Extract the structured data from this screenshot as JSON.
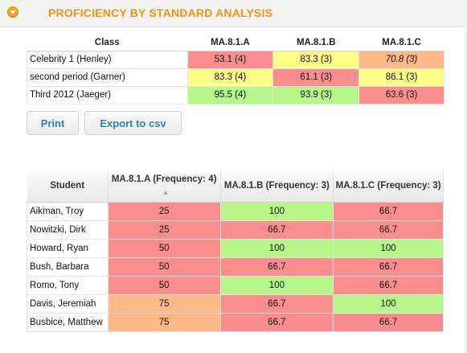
{
  "header": {
    "title": "PROFICIENCY BY STANDARD ANALYSIS"
  },
  "colors": {
    "red": "#fa8e8e",
    "yellow": "#ffff88",
    "green": "#b7f78a",
    "orange": "#ffb988",
    "accent": "#f0930f",
    "button_text": "#2a84b8"
  },
  "class_table": {
    "headers": [
      "Class",
      "MA.8.1.A",
      "MA.8.1.B",
      "MA.8.1.C"
    ],
    "rows": [
      {
        "name": "Celebrity 1 (Henley)",
        "cells": [
          {
            "text": "53.1 (4)",
            "color": "red",
            "italic": false
          },
          {
            "text": "83.3 (3)",
            "color": "yellow",
            "italic": false
          },
          {
            "text": "70.8 (3)",
            "color": "orange",
            "italic": true
          }
        ]
      },
      {
        "name": "second period (Garner)",
        "cells": [
          {
            "text": "83.3 (4)",
            "color": "yellow",
            "italic": false
          },
          {
            "text": "61.1 (3)",
            "color": "red",
            "italic": false
          },
          {
            "text": "86.1 (3)",
            "color": "yellow",
            "italic": false
          }
        ]
      },
      {
        "name": "Third 2012 (Jaeger)",
        "cells": [
          {
            "text": "95.5 (4)",
            "color": "green",
            "italic": false
          },
          {
            "text": "93.9 (3)",
            "color": "green",
            "italic": false
          },
          {
            "text": "63.6 (3)",
            "color": "red",
            "italic": false
          }
        ]
      }
    ]
  },
  "buttons": {
    "print": "Print",
    "export": "Export to csv"
  },
  "student_table": {
    "headers": [
      "Student",
      "MA.8.1.A (Frequency: 4)",
      "MA.8.1.B (Frequency: 3)",
      "MA.8.1.C (Frequency: 3)"
    ],
    "sort_icon": "sort-ascending-icon",
    "rows": [
      {
        "name": "Aikman, Troy",
        "cells": [
          {
            "text": "25",
            "color": "red"
          },
          {
            "text": "100",
            "color": "green"
          },
          {
            "text": "66.7",
            "color": "red"
          }
        ]
      },
      {
        "name": "Nowitzki, Dirk",
        "cells": [
          {
            "text": "25",
            "color": "red"
          },
          {
            "text": "66.7",
            "color": "red"
          },
          {
            "text": "66.7",
            "color": "red"
          }
        ]
      },
      {
        "name": "Howard, Ryan",
        "cells": [
          {
            "text": "50",
            "color": "red"
          },
          {
            "text": "100",
            "color": "green"
          },
          {
            "text": "100",
            "color": "green"
          }
        ]
      },
      {
        "name": "Bush, Barbara",
        "cells": [
          {
            "text": "50",
            "color": "red"
          },
          {
            "text": "66.7",
            "color": "red"
          },
          {
            "text": "66.7",
            "color": "red"
          }
        ]
      },
      {
        "name": "Romo, Tony",
        "cells": [
          {
            "text": "50",
            "color": "red"
          },
          {
            "text": "100",
            "color": "green"
          },
          {
            "text": "66.7",
            "color": "red"
          }
        ]
      },
      {
        "name": "Davis, Jeremiah",
        "cells": [
          {
            "text": "75",
            "color": "orange"
          },
          {
            "text": "66.7",
            "color": "red"
          },
          {
            "text": "100",
            "color": "green"
          }
        ]
      },
      {
        "name": "Busbice, Matthew",
        "cells": [
          {
            "text": "75",
            "color": "orange"
          },
          {
            "text": "66.7",
            "color": "red"
          },
          {
            "text": "66.7",
            "color": "red"
          }
        ]
      }
    ]
  }
}
